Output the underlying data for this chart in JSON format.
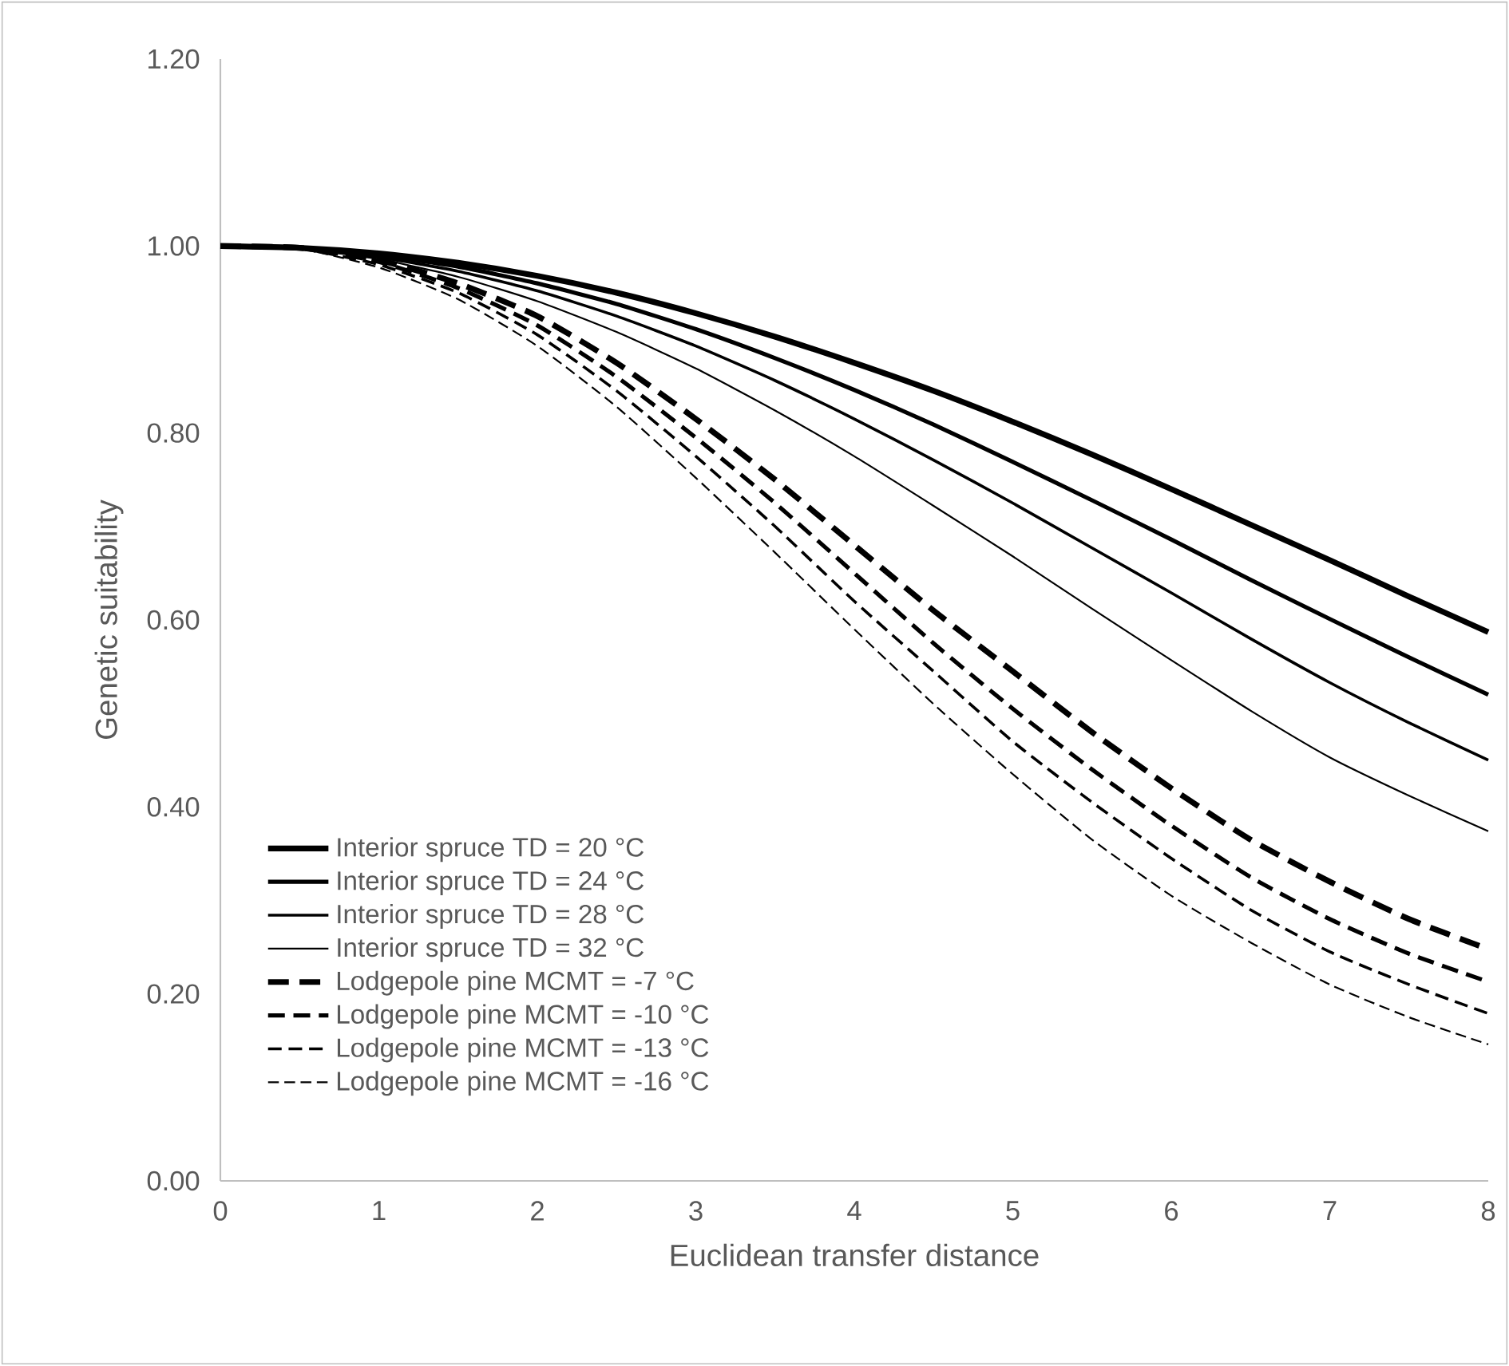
{
  "chart_data": {
    "type": "line",
    "xlabel": "Euclidean transfer distance",
    "ylabel": "Genetic suitability",
    "x": [
      0,
      0.5,
      1,
      1.5,
      2,
      2.5,
      3,
      3.5,
      4,
      4.5,
      5,
      5.5,
      6,
      6.5,
      7,
      7.5,
      8
    ],
    "xlim": [
      0,
      8
    ],
    "xticks": [
      0,
      1,
      2,
      3,
      4,
      5,
      6,
      7,
      8
    ],
    "ylim": [
      0,
      1.2
    ],
    "yticks": [
      {
        "value": 0,
        "label": "0.00"
      },
      {
        "value": 0.2,
        "label": "0.20"
      },
      {
        "value": 0.4,
        "label": "0.40"
      },
      {
        "value": 0.6,
        "label": "0.60"
      },
      {
        "value": 0.8,
        "label": "0.80"
      },
      {
        "value": 1.0,
        "label": "1.00"
      },
      {
        "value": 1.2,
        "label": "1.20"
      }
    ],
    "grid": false,
    "legend": "bottom left",
    "marker": "none",
    "series": [
      {
        "name": "Interior spruce TD = 20 °C",
        "color": "#000000",
        "line_style": "solid",
        "values": [
          1,
          0.998,
          0.992,
          0.982,
          0.968,
          0.95,
          0.928,
          0.903,
          0.875,
          0.845,
          0.812,
          0.777,
          0.74,
          0.702,
          0.664,
          0.625,
          0.587
        ]
      },
      {
        "name": "Interior spruce TD = 24 °C",
        "color": "#000000",
        "line_style": "solid",
        "values": [
          1,
          0.998,
          0.99,
          0.978,
          0.96,
          0.938,
          0.911,
          0.88,
          0.846,
          0.809,
          0.769,
          0.728,
          0.686,
          0.643,
          0.601,
          0.56,
          0.52
        ]
      },
      {
        "name": "Interior spruce TD = 28 °C",
        "color": "#000000",
        "line_style": "solid",
        "values": [
          1,
          0.997,
          0.988,
          0.973,
          0.952,
          0.925,
          0.893,
          0.856,
          0.815,
          0.771,
          0.725,
          0.677,
          0.629,
          0.58,
          0.533,
          0.49,
          0.45
        ]
      },
      {
        "name": "Interior spruce TD = 32 °C",
        "color": "#000000",
        "line_style": "solid",
        "values": [
          1,
          0.997,
          0.986,
          0.967,
          0.941,
          0.908,
          0.869,
          0.824,
          0.775,
          0.722,
          0.668,
          0.612,
          0.557,
          0.503,
          0.453,
          0.412,
          0.374
        ]
      },
      {
        "name": "Lodgepole pine MCMT = -7 °C",
        "color": "#000000",
        "line_style": "dashed",
        "values": [
          1,
          0.998,
          0.985,
          0.96,
          0.925,
          0.875,
          0.815,
          0.75,
          0.68,
          0.61,
          0.545,
          0.48,
          0.42,
          0.365,
          0.32,
          0.28,
          0.248
        ]
      },
      {
        "name": "Lodgepole pine MCMT = -10 °C",
        "color": "#000000",
        "line_style": "dashed",
        "values": [
          1,
          0.998,
          0.983,
          0.955,
          0.915,
          0.86,
          0.795,
          0.725,
          0.65,
          0.575,
          0.505,
          0.44,
          0.38,
          0.325,
          0.28,
          0.243,
          0.213
        ]
      },
      {
        "name": "Lodgepole pine MCMT = -13 °C",
        "color": "#000000",
        "line_style": "dashed",
        "values": [
          1,
          0.997,
          0.98,
          0.95,
          0.905,
          0.845,
          0.775,
          0.7,
          0.62,
          0.545,
          0.47,
          0.405,
          0.345,
          0.29,
          0.245,
          0.21,
          0.179
        ]
      },
      {
        "name": "Lodgepole pine MCMT = -16 °C",
        "color": "#000000",
        "line_style": "dashed",
        "values": [
          1,
          0.997,
          0.977,
          0.943,
          0.893,
          0.828,
          0.752,
          0.672,
          0.59,
          0.51,
          0.435,
          0.365,
          0.305,
          0.255,
          0.21,
          0.175,
          0.146
        ]
      }
    ]
  }
}
